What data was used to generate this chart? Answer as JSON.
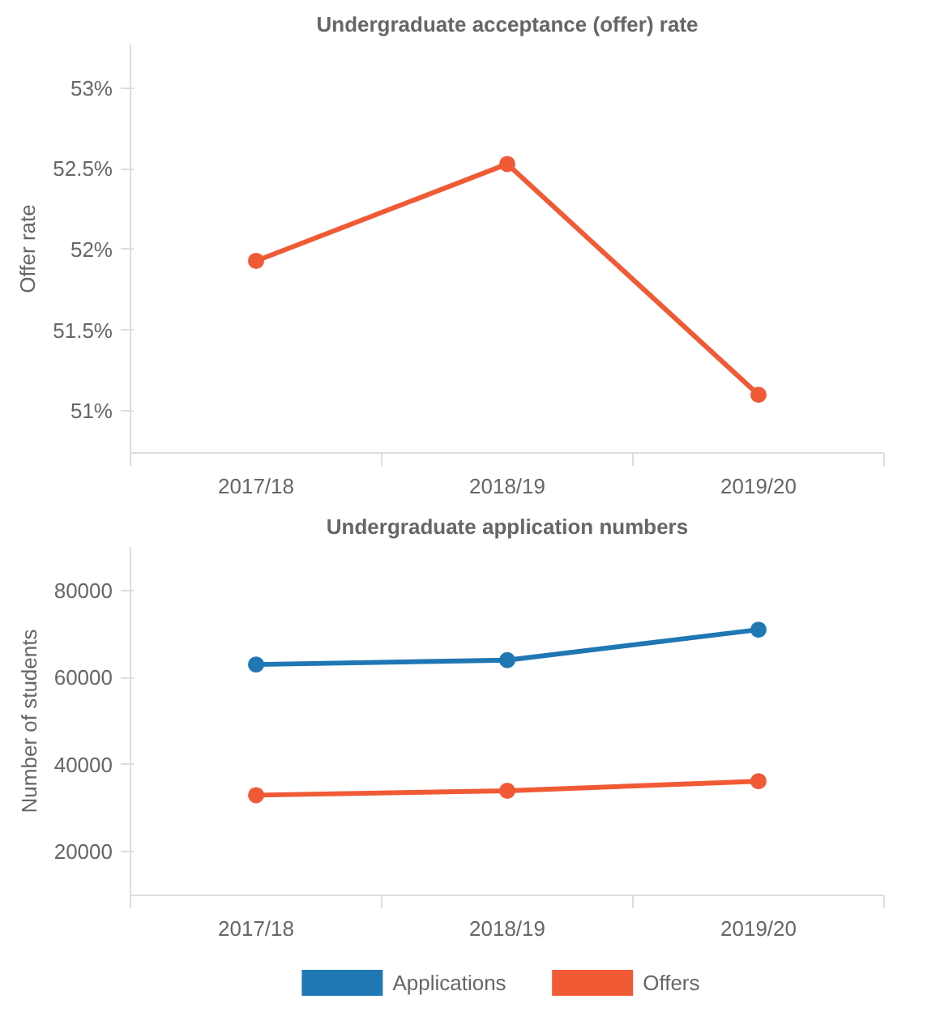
{
  "chart_data": [
    {
      "type": "line",
      "title": "Undergraduate acceptance (offer) rate",
      "ylabel": "Offer rate",
      "categories": [
        "2017/18",
        "2018/19",
        "2019/20"
      ],
      "series": [
        {
          "color": "#f05a35",
          "values": [
            51.93,
            52.53,
            51.1
          ]
        }
      ],
      "ylim": [
        50.74,
        53.27
      ],
      "yticks": [
        {
          "value": 51,
          "label": "51%"
        },
        {
          "value": 51.5,
          "label": "51.5%"
        },
        {
          "value": 52,
          "label": "52%"
        },
        {
          "value": 52.5,
          "label": "52.5%"
        },
        {
          "value": 53,
          "label": "53%"
        }
      ],
      "marker": "circle",
      "line_style": "solid",
      "grid": false,
      "legend": false
    },
    {
      "type": "line",
      "title": "Undergraduate application numbers",
      "ylabel": "Number of students",
      "categories": [
        "2017/18",
        "2018/19",
        "2019/20"
      ],
      "series": [
        {
          "name": "Applications",
          "color": "#1f77b4",
          "values": [
            63000,
            64000,
            71000
          ]
        },
        {
          "name": "Offers",
          "color": "#f05a35",
          "values": [
            33000,
            34000,
            36200
          ]
        }
      ],
      "ylim": [
        10000,
        90000
      ],
      "yticks": [
        20000,
        40000,
        60000,
        80000
      ],
      "marker": "circle",
      "line_style": "solid",
      "grid": false,
      "legend": "bottom"
    }
  ]
}
